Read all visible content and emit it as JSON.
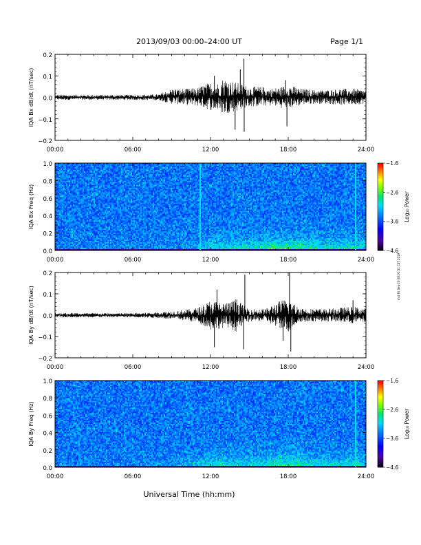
{
  "header": {
    "title": "2013/09/03  00:00–24:00 UT",
    "page": "Page 1/1"
  },
  "footer": {
    "xlabel": "Universal Time (hh:mm)",
    "side_note": "mst Fri Sep 20 08:01:51 CST 2019"
  },
  "chart_data": [
    {
      "type": "line",
      "ylabel": "IQA Bx dB/dt (nT/sec)",
      "x_ticks": [
        "00:00",
        "06:00",
        "12:00",
        "18:00",
        "24:00"
      ],
      "xlim": [
        0,
        24
      ],
      "ylim": [
        -0.2,
        0.2
      ],
      "y_ticks": [
        "0.2",
        "0.1",
        "0.0",
        "−0.1",
        "−0.2"
      ],
      "envelope": {
        "hours": [
          0,
          2,
          4,
          6,
          8,
          9,
          10,
          11,
          11.5,
          12,
          12.5,
          13,
          13.5,
          14,
          14.5,
          15,
          16,
          16.5,
          17,
          17.5,
          18,
          18.5,
          19,
          20,
          21,
          22,
          23,
          24
        ],
        "upper": [
          0.012,
          0.012,
          0.012,
          0.012,
          0.014,
          0.04,
          0.04,
          0.045,
          0.06,
          0.07,
          0.065,
          0.09,
          0.08,
          0.07,
          0.06,
          0.05,
          0.05,
          0.04,
          0.045,
          0.05,
          0.06,
          0.05,
          0.04,
          0.035,
          0.035,
          0.04,
          0.04,
          0.035
        ],
        "lower": [
          -0.012,
          -0.012,
          -0.012,
          -0.012,
          -0.014,
          -0.03,
          -0.035,
          -0.04,
          -0.05,
          -0.06,
          -0.06,
          -0.08,
          -0.07,
          -0.065,
          -0.05,
          -0.045,
          -0.04,
          -0.04,
          -0.04,
          -0.05,
          -0.05,
          -0.045,
          -0.035,
          -0.03,
          -0.03,
          -0.035,
          -0.035,
          -0.03
        ]
      },
      "spikes": [
        {
          "hour": 14.58,
          "value": 0.18
        },
        {
          "hour": 14.6,
          "value": -0.16
        },
        {
          "hour": 14.3,
          "value": 0.13
        },
        {
          "hour": 13.9,
          "value": -0.15
        },
        {
          "hour": 12.3,
          "value": 0.1
        },
        {
          "hour": 17.9,
          "value": -0.135
        },
        {
          "hour": 17.8,
          "value": 0.08
        }
      ]
    },
    {
      "type": "heatmap",
      "ylabel": "IQA Bx Freq (Hz)",
      "x_ticks": [
        "00:00",
        "06:00",
        "12:00",
        "18:00",
        "24:00"
      ],
      "xlim": [
        0,
        24
      ],
      "ylim": [
        0.0,
        1.0
      ],
      "y_ticks": [
        "1.0",
        "0.8",
        "0.6",
        "0.4",
        "0.2",
        "0.0"
      ],
      "colorbar": {
        "label": "Log₁₀ Power",
        "ticks": [
          "−1.6",
          "−2.6",
          "−3.6",
          "−4.6"
        ],
        "range": [
          -4.6,
          -1.6
        ]
      },
      "enhancement": {
        "hours": [
          0,
          8,
          10,
          11,
          12,
          13,
          14,
          15,
          16,
          17,
          18,
          19,
          20,
          21,
          22,
          23,
          24
        ],
        "strength": [
          0.05,
          0.08,
          0.15,
          0.3,
          0.5,
          0.55,
          0.6,
          0.6,
          0.65,
          0.85,
          0.8,
          0.75,
          0.7,
          0.6,
          0.55,
          0.6,
          0.5
        ]
      },
      "bright_columns": [
        11.2,
        23.2
      ]
    },
    {
      "type": "line",
      "ylabel": "IQA By dB/dt (nT/sec)",
      "x_ticks": [
        "00:00",
        "06:00",
        "12:00",
        "18:00",
        "24:00"
      ],
      "xlim": [
        0,
        24
      ],
      "ylim": [
        -0.2,
        0.2
      ],
      "y_ticks": [
        "0.2",
        "0.1",
        "0.0",
        "−0.1",
        "−0.2"
      ],
      "envelope": {
        "hours": [
          0,
          2,
          4,
          6,
          8,
          9,
          10,
          11,
          11.5,
          12,
          12.5,
          13,
          13.5,
          14,
          14.5,
          15,
          16,
          16.5,
          17,
          17.5,
          18,
          18.5,
          19,
          20,
          21,
          22,
          23,
          24
        ],
        "upper": [
          0.012,
          0.01,
          0.01,
          0.01,
          0.014,
          0.02,
          0.025,
          0.035,
          0.05,
          0.07,
          0.065,
          0.06,
          0.06,
          0.08,
          0.05,
          0.03,
          0.03,
          0.035,
          0.06,
          0.07,
          0.08,
          0.05,
          0.035,
          0.03,
          0.03,
          0.035,
          0.04,
          0.035
        ],
        "lower": [
          -0.012,
          -0.01,
          -0.01,
          -0.01,
          -0.014,
          -0.02,
          -0.025,
          -0.035,
          -0.05,
          -0.07,
          -0.065,
          -0.06,
          -0.06,
          -0.08,
          -0.05,
          -0.03,
          -0.03,
          -0.035,
          -0.06,
          -0.07,
          -0.08,
          -0.05,
          -0.035,
          -0.03,
          -0.03,
          -0.035,
          -0.04,
          -0.035
        ]
      },
      "spikes": [
        {
          "hour": 14.65,
          "value": 0.19
        },
        {
          "hour": 14.55,
          "value": -0.16
        },
        {
          "hour": 12.3,
          "value": -0.15
        },
        {
          "hour": 12.5,
          "value": 0.12
        },
        {
          "hour": 18.1,
          "value": 0.2
        },
        {
          "hour": 18.2,
          "value": -0.17
        },
        {
          "hour": 17.6,
          "value": -0.12
        },
        {
          "hour": 23.0,
          "value": 0.07
        }
      ]
    },
    {
      "type": "heatmap",
      "ylabel": "IQA By Freq (Hz)",
      "x_ticks": [
        "00:00",
        "06:00",
        "12:00",
        "18:00",
        "24:00"
      ],
      "xlim": [
        0,
        24
      ],
      "ylim": [
        0.0,
        1.0
      ],
      "y_ticks": [
        "1.0",
        "0.8",
        "0.6",
        "0.4",
        "0.2",
        "0.0"
      ],
      "colorbar": {
        "label": "Log₁₀ Power",
        "ticks": [
          "−1.6",
          "−2.6",
          "−3.6",
          "−4.6"
        ],
        "range": [
          -4.6,
          -1.6
        ]
      },
      "enhancement": {
        "hours": [
          0,
          8,
          10,
          11,
          12,
          13,
          14,
          15,
          16,
          17,
          18,
          19,
          20,
          21,
          22,
          23,
          24
        ],
        "strength": [
          0.05,
          0.08,
          0.2,
          0.35,
          0.55,
          0.6,
          0.55,
          0.5,
          0.55,
          0.8,
          0.8,
          0.7,
          0.6,
          0.55,
          0.5,
          0.6,
          0.45
        ]
      },
      "bright_columns": [
        23.2
      ]
    }
  ]
}
